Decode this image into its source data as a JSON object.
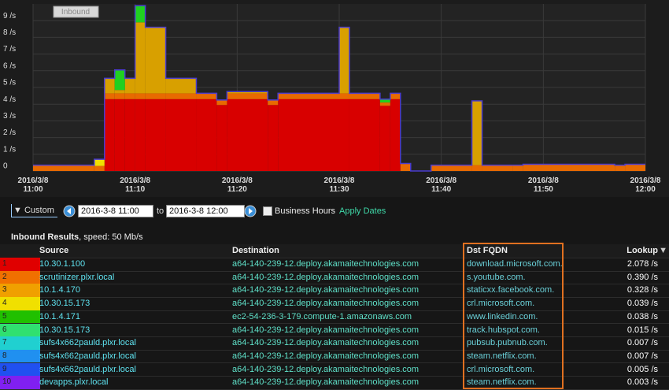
{
  "chart_data": {
    "type": "area",
    "stacked": true,
    "step": true,
    "label": "Inbound",
    "x": [
      0,
      6,
      7,
      8,
      9,
      10,
      11,
      13,
      16,
      18,
      19,
      23,
      24,
      30,
      31,
      34,
      35,
      36,
      37,
      39,
      43,
      44,
      47,
      48,
      57,
      58
    ],
    "xlim": [
      0,
      60
    ],
    "xticks": [
      {
        "value": 0,
        "label": "2016/3/8 11:00"
      },
      {
        "value": 10,
        "label": "2016/3/8 11:10"
      },
      {
        "value": 20,
        "label": "2016/3/8 11:20"
      },
      {
        "value": 30,
        "label": "2016/3/8 11:30"
      },
      {
        "value": 40,
        "label": "2016/3/8 11:40"
      },
      {
        "value": 50,
        "label": "2016/3/8 11:50"
      },
      {
        "value": 60,
        "label": "2016/3/8 12:00"
      }
    ],
    "ylim": [
      0,
      10
    ],
    "yticks": [
      0,
      {
        "value": 1,
        "label": "1 /s"
      },
      {
        "value": 2,
        "label": "2 /s"
      },
      {
        "value": 3,
        "label": "3 /s"
      },
      {
        "value": 4,
        "label": "4 /s"
      },
      {
        "value": 5,
        "label": "5 /s"
      },
      {
        "value": 6,
        "label": "6 /s"
      },
      {
        "value": 7,
        "label": "7 /s"
      },
      {
        "value": 8,
        "label": "8 /s"
      },
      {
        "value": 9,
        "label": "9 /s"
      }
    ],
    "grid": true,
    "series": [
      {
        "color": "#d80000",
        "values": [
          0,
          0,
          4.3,
          4.3,
          4.3,
          4.3,
          4.3,
          4.3,
          4.3,
          3.95,
          4.3,
          3.95,
          4.3,
          4.3,
          4.3,
          3.9,
          4.3,
          0,
          0,
          0,
          0,
          0,
          0,
          0,
          0,
          0
        ]
      },
      {
        "color": "#e86a00",
        "values": [
          0.35,
          0.3,
          0.35,
          0.35,
          0.35,
          0.35,
          0.35,
          0.35,
          0.35,
          0.3,
          0.35,
          0.3,
          0.35,
          0.35,
          0.35,
          0.2,
          0.35,
          0.45,
          0,
          0.35,
          0.35,
          0.35,
          0.35,
          0.4,
          0.35,
          0.4
        ]
      },
      {
        "color": "#d8a000",
        "values": [
          0,
          0,
          0.9,
          0.2,
          0.9,
          4.25,
          3.95,
          0.9,
          0,
          0,
          0.1,
          0,
          0,
          3.95,
          0,
          0,
          0,
          0,
          0,
          0,
          3.85,
          0,
          0,
          0,
          0,
          0
        ]
      },
      {
        "color": "#f0e000",
        "values": [
          0,
          0.4,
          0,
          0,
          0,
          0,
          0,
          0,
          0,
          0,
          0,
          0,
          0,
          0,
          0,
          0,
          0,
          0,
          0,
          0,
          0,
          0,
          0,
          0,
          0,
          0
        ]
      },
      {
        "color": "#20d020",
        "values": [
          0,
          0,
          0,
          1.2,
          0,
          1.0,
          0,
          0,
          0,
          0,
          0,
          0,
          0,
          0,
          0,
          0.2,
          0,
          0,
          0,
          0,
          0,
          0,
          0,
          0,
          0,
          0
        ]
      }
    ]
  },
  "controls": {
    "range_menu": "Custom",
    "start": "2016-3-8 11:00",
    "to": "to",
    "end": "2016-3-8 12:00",
    "business_hours": "Business Hours",
    "apply": "Apply Dates"
  },
  "results": {
    "title": "Inbound Results",
    "speed": ", speed: 50 Mb/s"
  },
  "table": {
    "columns": [
      "Source",
      "Destination",
      "Dst FQDN",
      "Lookup"
    ],
    "rows": [
      {
        "index": 1,
        "color": "#e00000",
        "source": "10.30.1.100",
        "destination": "a64-140-239-12.deploy.akamaitechnologies.com",
        "fqdn": "download.microsoft.com.",
        "lookup": "2.078 /s"
      },
      {
        "index": 2,
        "color": "#f07000",
        "source": "scrutinizer.plxr.local",
        "destination": "a64-140-239-12.deploy.akamaitechnologies.com",
        "fqdn": "s.youtube.com.",
        "lookup": "0.390 /s"
      },
      {
        "index": 3,
        "color": "#f0a000",
        "source": "10.1.4.170",
        "destination": "a64-140-239-12.deploy.akamaitechnologies.com",
        "fqdn": "staticxx.facebook.com.",
        "lookup": "0.328 /s"
      },
      {
        "index": 4,
        "color": "#f0e000",
        "source": "10.30.15.173",
        "destination": "a64-140-239-12.deploy.akamaitechnologies.com",
        "fqdn": "crl.microsoft.com.",
        "lookup": "0.039 /s"
      },
      {
        "index": 5,
        "color": "#20c000",
        "source": "10.1.4.171",
        "destination": "ec2-54-236-3-179.compute-1.amazonaws.com",
        "fqdn": "www.linkedin.com.",
        "lookup": "0.038 /s"
      },
      {
        "index": 6,
        "color": "#30e070",
        "source": "10.30.15.173",
        "destination": "a64-140-239-12.deploy.akamaitechnologies.com",
        "fqdn": "track.hubspot.com.",
        "lookup": "0.015 /s"
      },
      {
        "index": 7,
        "color": "#20d0d0",
        "source": "sufs4x662pauld.plxr.local",
        "destination": "a64-140-239-12.deploy.akamaitechnologies.com",
        "fqdn": "pubsub.pubnub.com.",
        "lookup": "0.007 /s"
      },
      {
        "index": 8,
        "color": "#2090f0",
        "source": "sufs4x662pauld.plxr.local",
        "destination": "a64-140-239-12.deploy.akamaitechnologies.com",
        "fqdn": "steam.netflix.com.",
        "lookup": "0.007 /s"
      },
      {
        "index": 9,
        "color": "#2050f0",
        "source": "sufs4x662pauld.plxr.local",
        "destination": "a64-140-239-12.deploy.akamaitechnologies.com",
        "fqdn": "crl.microsoft.com.",
        "lookup": "0.005 /s"
      },
      {
        "index": 10,
        "color": "#8020f0",
        "source": "devapps.plxr.local",
        "destination": "a64-140-239-12.deploy.akamaitechnologies.com",
        "fqdn": "steam.netflix.com.",
        "lookup": "0.003 /s"
      }
    ]
  }
}
